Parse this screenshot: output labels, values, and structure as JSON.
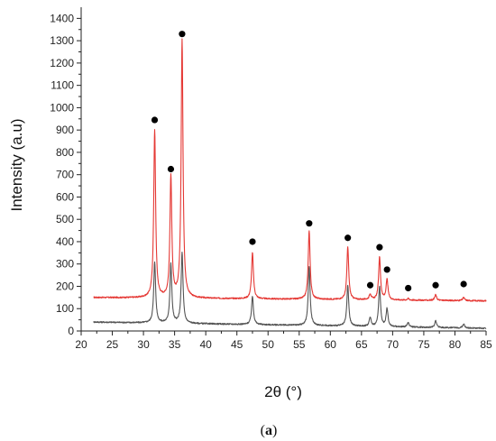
{
  "chart_data": {
    "type": "line",
    "xlabel": "2θ (°)",
    "ylabel": "Intensity (a.u)",
    "xlim": [
      20,
      85
    ],
    "ylim": [
      0,
      1450
    ],
    "xticks": [
      20,
      25,
      30,
      35,
      40,
      45,
      50,
      55,
      60,
      65,
      70,
      75,
      80,
      85
    ],
    "yticks": [
      0,
      100,
      200,
      300,
      400,
      500,
      600,
      700,
      800,
      900,
      1000,
      1100,
      1200,
      1300,
      1400
    ],
    "grid": false,
    "x_range": [
      22,
      85
    ],
    "series": [
      {
        "color": "#e53935",
        "baseline": 150,
        "baseline_end": 135,
        "peaks": [
          {
            "x": 31.8,
            "y": 900
          },
          {
            "x": 34.4,
            "y": 690
          },
          {
            "x": 36.2,
            "y": 1300
          },
          {
            "x": 47.5,
            "y": 350
          },
          {
            "x": 56.6,
            "y": 450
          },
          {
            "x": 62.8,
            "y": 375
          },
          {
            "x": 66.4,
            "y": 165
          },
          {
            "x": 67.9,
            "y": 330
          },
          {
            "x": 69.1,
            "y": 230
          },
          {
            "x": 72.5,
            "y": 145
          },
          {
            "x": 76.9,
            "y": 162
          },
          {
            "x": 81.4,
            "y": 150
          }
        ]
      },
      {
        "color": "#555555",
        "baseline": 40,
        "baseline_end": 12,
        "peaks": [
          {
            "x": 31.8,
            "y": 310
          },
          {
            "x": 34.4,
            "y": 300
          },
          {
            "x": 36.2,
            "y": 350
          },
          {
            "x": 47.5,
            "y": 155
          },
          {
            "x": 56.6,
            "y": 290
          },
          {
            "x": 62.8,
            "y": 205
          },
          {
            "x": 66.4,
            "y": 60
          },
          {
            "x": 67.9,
            "y": 200
          },
          {
            "x": 69.1,
            "y": 100
          },
          {
            "x": 72.5,
            "y": 38
          },
          {
            "x": 76.9,
            "y": 45
          },
          {
            "x": 81.4,
            "y": 32
          }
        ]
      }
    ],
    "markers": [
      {
        "x": 31.8,
        "y": 945
      },
      {
        "x": 34.4,
        "y": 725
      },
      {
        "x": 36.2,
        "y": 1330
      },
      {
        "x": 47.5,
        "y": 400
      },
      {
        "x": 56.6,
        "y": 482
      },
      {
        "x": 62.8,
        "y": 417
      },
      {
        "x": 66.4,
        "y": 205
      },
      {
        "x": 67.9,
        "y": 375
      },
      {
        "x": 69.1,
        "y": 275
      },
      {
        "x": 72.5,
        "y": 192
      },
      {
        "x": 76.9,
        "y": 205
      },
      {
        "x": 81.4,
        "y": 210
      }
    ]
  },
  "caption": {
    "open": "(",
    "letter": "a",
    "close": ")"
  }
}
